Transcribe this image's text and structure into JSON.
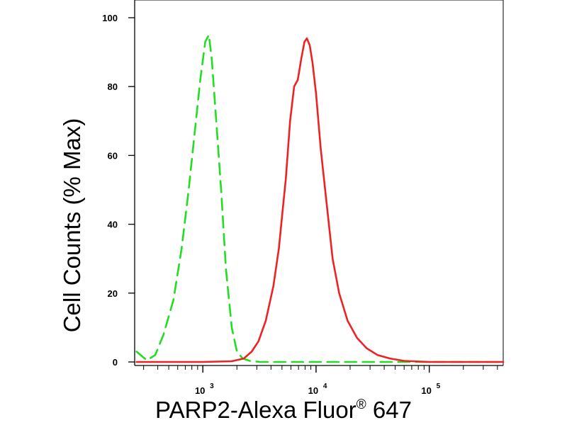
{
  "chart_data": {
    "type": "line",
    "xlabel": "PARP2-Alexa Fluor",
    "xlabel_mark": "®",
    "xlabel_suffix": "647",
    "ylabel": "Cell Counts (% Max)",
    "xscale": "log",
    "xlim": [
      250,
      450000
    ],
    "ylim": [
      0,
      100
    ],
    "yticks": [
      {
        "value": 0,
        "label": "0"
      },
      {
        "value": 20,
        "label": "20"
      },
      {
        "value": 40,
        "label": "40"
      },
      {
        "value": 60,
        "label": "60"
      },
      {
        "value": 80,
        "label": "80"
      },
      {
        "value": 100,
        "label": "100"
      }
    ],
    "xticks": [
      {
        "value": 1000,
        "base": "10",
        "exp": "3"
      },
      {
        "value": 10000,
        "base": "10",
        "exp": "4"
      },
      {
        "value": 100000,
        "base": "10",
        "exp": "5"
      }
    ],
    "grid": false,
    "series": [
      {
        "color": "#22dd22",
        "style": "dashed",
        "x": [
          260,
          320,
          380,
          450,
          550,
          650,
          750,
          850,
          950,
          1050,
          1130,
          1200,
          1300,
          1450,
          1600,
          1800,
          2000,
          2250,
          2600,
          3200,
          5000,
          10000,
          20000,
          50000,
          100000,
          300000,
          450000
        ],
        "y": [
          3,
          0.5,
          2,
          8,
          18,
          33,
          50,
          67,
          82,
          93,
          95,
          88,
          72,
          50,
          27,
          10,
          3,
          1,
          0.3,
          0,
          0,
          0,
          0,
          0,
          0,
          0,
          0
        ]
      },
      {
        "color": "#ee2222",
        "style": "solid",
        "x": [
          260,
          1000,
          1800,
          2300,
          2700,
          3100,
          3600,
          4200,
          4700,
          5000,
          5400,
          5900,
          6400,
          6900,
          7400,
          7900,
          8300,
          8800,
          9300,
          10000,
          11000,
          12500,
          14000,
          16000,
          19000,
          23000,
          28000,
          35000,
          45000,
          60000,
          100000,
          300000,
          450000
        ],
        "y": [
          0,
          0,
          0.2,
          1,
          3,
          6,
          12,
          22,
          33,
          42,
          53,
          70,
          80,
          82,
          88,
          93,
          94,
          92,
          87,
          78,
          62,
          45,
          30,
          20,
          12,
          7,
          4,
          2,
          1,
          0.3,
          0,
          0,
          0
        ]
      }
    ]
  }
}
